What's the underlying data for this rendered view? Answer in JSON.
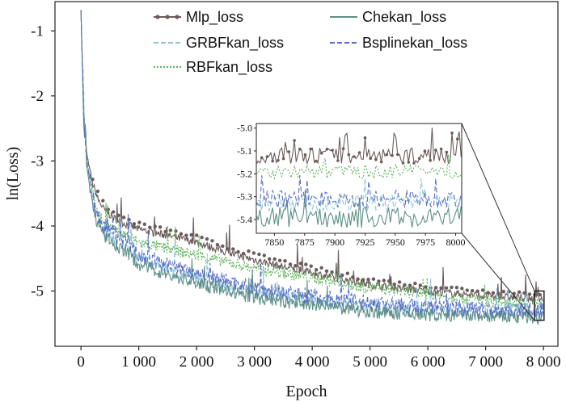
{
  "chart_data": {
    "type": "line",
    "title": "",
    "xlabel": "Epoch",
    "ylabel": "ln(Loss)",
    "xlim": [
      -450,
      8250
    ],
    "ylim": [
      -5.85,
      -0.55
    ],
    "x_ticks": [
      0,
      1000,
      2000,
      3000,
      4000,
      5000,
      6000,
      7000,
      8000
    ],
    "x_tick_labels": [
      "0",
      "1 000",
      "2 000",
      "3 000",
      "4 000",
      "5 000",
      "6 000",
      "7 000",
      "8 000"
    ],
    "y_ticks": [
      -1,
      -2,
      -3,
      -4,
      -5
    ],
    "y_tick_labels": [
      "-1",
      "-2",
      "-3",
      "-4",
      "-5"
    ],
    "grid": false,
    "legend_placement": "top",
    "series": [
      {
        "name": "Mlp_loss",
        "color": "#6b5b5b",
        "style": "solid-dotmarker",
        "x": [
          0,
          50,
          100,
          200,
          300,
          400,
          600,
          800,
          1000,
          1500,
          2000,
          2500,
          3000,
          3500,
          4000,
          4500,
          5000,
          5500,
          6000,
          6500,
          7000,
          7500,
          8000
        ],
        "values": [
          -0.7,
          -2.3,
          -2.9,
          -3.35,
          -3.6,
          -3.75,
          -3.9,
          -3.98,
          -4.05,
          -4.15,
          -4.25,
          -4.4,
          -4.52,
          -4.63,
          -4.72,
          -4.82,
          -4.9,
          -4.96,
          -5.0,
          -5.04,
          -5.08,
          -5.1,
          -5.12
        ]
      },
      {
        "name": "GRBFkan_loss",
        "color": "#8fc5dc",
        "style": "dashed",
        "x": [
          0,
          50,
          100,
          200,
          300,
          400,
          600,
          800,
          1000,
          1500,
          2000,
          2500,
          3000,
          3500,
          4000,
          4500,
          5000,
          5500,
          6000,
          6500,
          7000,
          7500,
          8000
        ],
        "values": [
          -0.7,
          -2.4,
          -3.0,
          -3.6,
          -3.9,
          -4.05,
          -4.2,
          -4.3,
          -4.5,
          -4.65,
          -4.78,
          -4.9,
          -5.0,
          -5.08,
          -5.14,
          -5.18,
          -5.22,
          -5.25,
          -5.27,
          -5.28,
          -5.29,
          -5.3,
          -5.31
        ]
      },
      {
        "name": "RBFkan_loss",
        "color": "#5db35a",
        "style": "dotted",
        "x": [
          0,
          50,
          100,
          200,
          300,
          400,
          600,
          800,
          1000,
          1500,
          2000,
          2500,
          3000,
          3500,
          4000,
          4500,
          5000,
          5500,
          6000,
          6500,
          7000,
          7500,
          8000
        ],
        "values": [
          -0.7,
          -2.35,
          -2.95,
          -3.5,
          -3.8,
          -3.95,
          -4.1,
          -4.15,
          -4.25,
          -4.35,
          -4.45,
          -4.55,
          -4.65,
          -4.72,
          -4.8,
          -4.88,
          -4.95,
          -5.0,
          -5.05,
          -5.1,
          -5.14,
          -5.17,
          -5.2
        ]
      },
      {
        "name": "Chekan_loss",
        "color": "#5e8f88",
        "style": "solid",
        "x": [
          0,
          50,
          100,
          200,
          300,
          400,
          600,
          800,
          1000,
          1500,
          2000,
          2500,
          3000,
          3500,
          4000,
          4500,
          5000,
          5500,
          6000,
          6500,
          7000,
          7500,
          8000
        ],
        "values": [
          -0.7,
          -2.5,
          -3.1,
          -3.7,
          -4.0,
          -4.15,
          -4.3,
          -4.4,
          -4.6,
          -4.75,
          -4.88,
          -5.0,
          -5.1,
          -5.17,
          -5.22,
          -5.26,
          -5.32,
          -5.35,
          -5.37,
          -5.38,
          -5.39,
          -5.4,
          -5.41
        ]
      },
      {
        "name": "Bsplinekan_loss",
        "color": "#5a6fc4",
        "style": "dashed",
        "x": [
          0,
          50,
          100,
          200,
          300,
          400,
          600,
          800,
          1000,
          1500,
          2000,
          2500,
          3000,
          3500,
          4000,
          4500,
          5000,
          5500,
          6000,
          6500,
          7000,
          7500,
          8000
        ],
        "values": [
          -0.7,
          -2.38,
          -2.98,
          -3.55,
          -3.85,
          -4.0,
          -4.15,
          -4.25,
          -4.45,
          -4.6,
          -4.72,
          -4.84,
          -4.94,
          -5.02,
          -5.08,
          -5.13,
          -5.18,
          -5.22,
          -5.25,
          -5.27,
          -5.28,
          -5.29,
          -5.3
        ]
      }
    ],
    "inset": {
      "xlim": [
        7835,
        8005
      ],
      "ylim": [
        -5.46,
        -4.98
      ],
      "x_ticks": [
        7850,
        7875,
        7900,
        7925,
        7950,
        7975,
        8000
      ],
      "x_tick_labels": [
        "7850",
        "7875",
        "7900",
        "7925",
        "7950",
        "7975",
        "8000"
      ],
      "y_ticks": [
        -5.0,
        -5.1,
        -5.2,
        -5.3,
        -5.4
      ],
      "y_tick_labels": [
        "-5.0",
        "-5.1",
        "-5.2",
        "-5.3",
        "-5.4"
      ],
      "levels": {
        "Mlp_loss": -5.12,
        "GRBFkan_loss": -5.33,
        "RBFkan_loss": -5.19,
        "Chekan_loss": -5.39,
        "Bsplinekan_loss": -5.31
      }
    }
  }
}
